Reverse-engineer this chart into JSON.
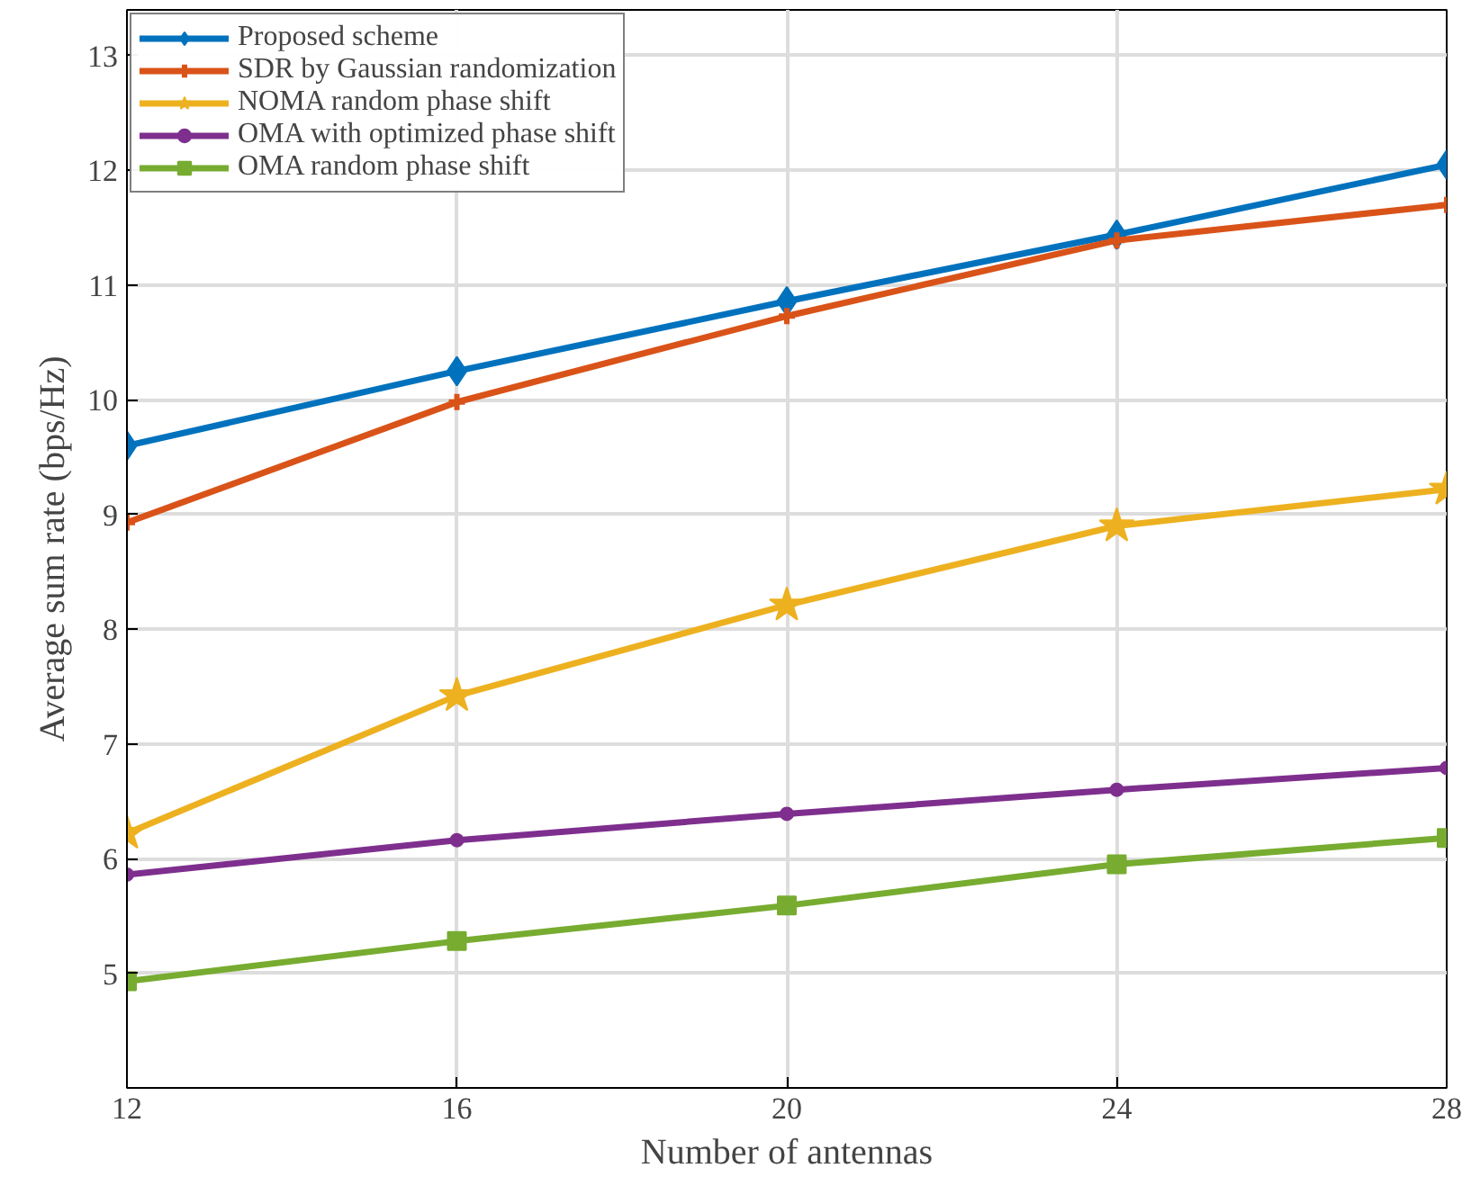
{
  "chart_data": {
    "type": "line",
    "xlabel": "Number of antennas",
    "ylabel": "Average sum rate (bps/Hz)",
    "x": [
      12,
      16,
      20,
      24,
      28
    ],
    "series": [
      {
        "name": "Proposed scheme",
        "color": "#0072bd",
        "marker": "diamond",
        "values": [
          9.6,
          10.25,
          10.86,
          11.44,
          12.05
        ]
      },
      {
        "name": "SDR by Gaussian randomization",
        "color": "#d95319",
        "marker": "cross",
        "values": [
          8.93,
          9.98,
          10.73,
          11.39,
          11.7
        ]
      },
      {
        "name": "NOMA random phase shift",
        "color": "#edb120",
        "marker": "star",
        "values": [
          6.22,
          7.42,
          8.21,
          8.9,
          9.22
        ]
      },
      {
        "name": "OMA with optimized phase shift",
        "color": "#7e2f8e",
        "marker": "circle",
        "values": [
          5.86,
          6.16,
          6.39,
          6.6,
          6.79
        ]
      },
      {
        "name": "OMA random phase shift",
        "color": "#77ac30",
        "marker": "square",
        "values": [
          4.93,
          5.28,
          5.59,
          5.95,
          6.18
        ]
      }
    ],
    "xlim": [
      12,
      28
    ],
    "xticks": [
      12,
      16,
      20,
      24,
      28
    ],
    "ylim": [
      4,
      13.4
    ],
    "yticks": [
      5,
      6,
      7,
      8,
      9,
      10,
      11,
      12,
      13
    ],
    "grid": true,
    "legend": "top left",
    "line_style": "solid"
  }
}
